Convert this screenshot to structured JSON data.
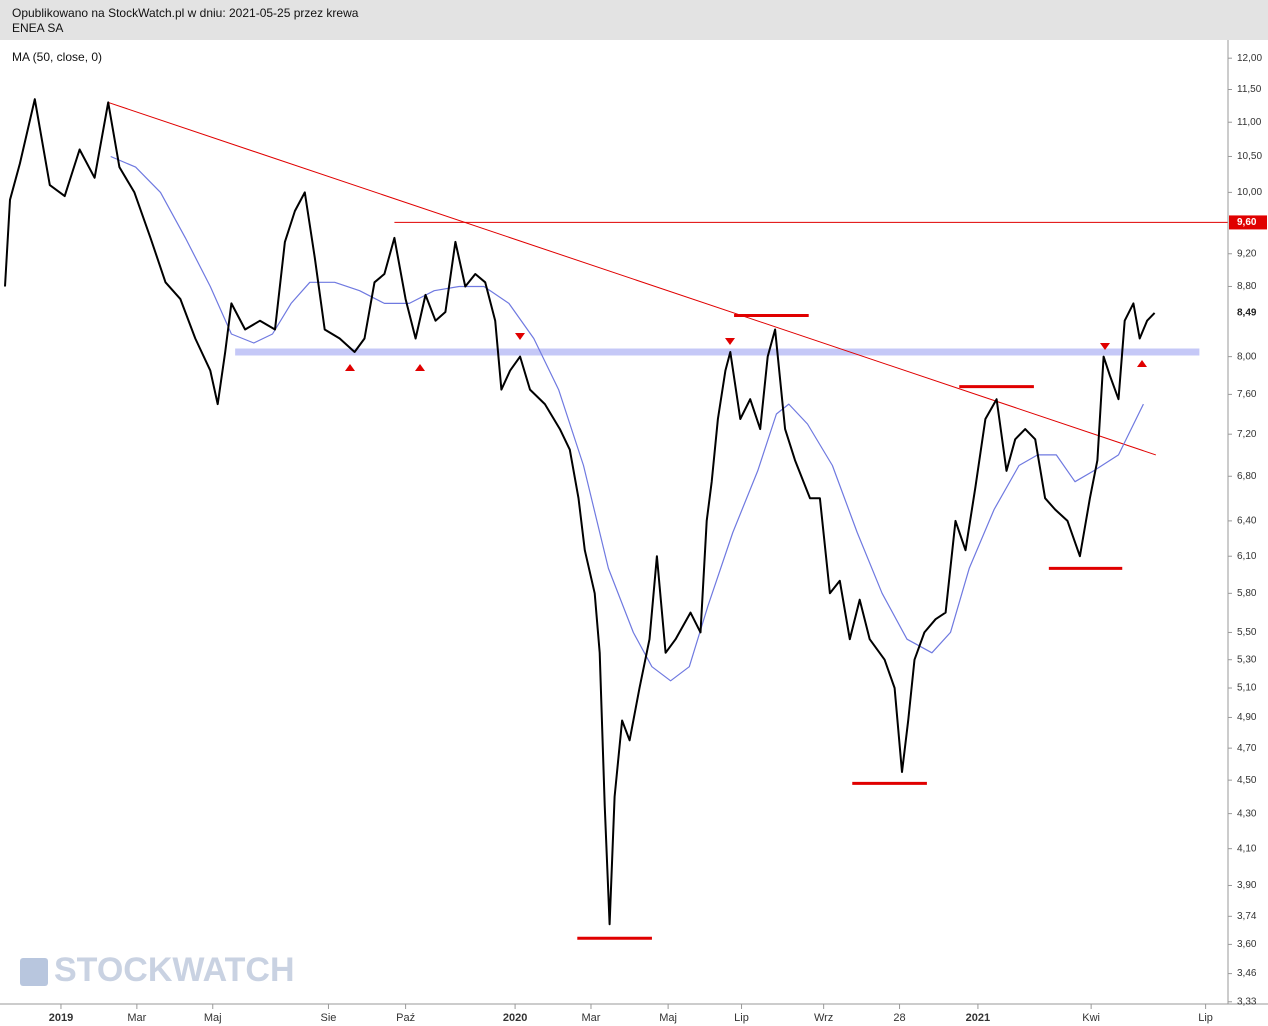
{
  "header": {
    "published": "Opublikowano na StockWatch.pl w dniu: 2021-05-25 przez krewa",
    "symbol": "ENEA SA"
  },
  "watermark": "STOCKWATCH",
  "chart_data": {
    "type": "line",
    "log_scale": true,
    "series": [
      {
        "name": "ENEA SA",
        "color": "#000000",
        "x": [
          -45,
          -41,
          -33,
          -21,
          -9,
          3,
          15,
          27,
          38,
          47,
          59,
          72,
          84,
          96,
          108,
          120,
          126,
          132,
          137,
          148,
          160,
          172,
          180,
          188,
          196,
          204,
          212,
          224,
          236,
          244,
          252,
          260,
          268,
          277,
          285,
          293,
          301,
          309,
          317,
          325,
          333,
          341,
          349,
          354,
          361,
          369,
          377,
          389,
          401,
          409,
          416,
          421,
          429,
          433,
          437,
          441,
          445,
          451,
          457,
          465,
          473,
          479,
          486,
          494,
          506,
          514,
          519,
          523,
          528,
          534,
          538,
          546,
          554,
          562,
          568,
          574,
          582,
          590,
          602,
          610,
          618,
          626,
          634,
          642,
          650,
          662,
          670,
          676,
          681,
          686,
          694,
          703,
          711,
          719,
          727,
          735,
          743,
          752,
          760,
          767,
          775,
          783,
          791,
          799,
          809,
          819,
          827,
          833,
          838,
          843,
          850,
          855,
          862,
          867,
          873,
          879
        ],
        "values": [
          8.8,
          9.9,
          10.4,
          11.35,
          10.1,
          9.95,
          10.6,
          10.2,
          11.3,
          10.35,
          10.0,
          9.4,
          8.85,
          8.65,
          8.2,
          7.85,
          7.5,
          8.05,
          8.6,
          8.3,
          8.4,
          8.3,
          9.35,
          9.75,
          10.0,
          9.15,
          8.3,
          8.2,
          8.05,
          8.2,
          8.85,
          8.95,
          9.4,
          8.65,
          8.2,
          8.7,
          8.4,
          8.5,
          9.35,
          8.8,
          8.95,
          8.85,
          8.4,
          7.65,
          7.85,
          8.0,
          7.65,
          7.5,
          7.25,
          7.05,
          6.6,
          6.15,
          5.8,
          5.35,
          4.35,
          3.7,
          4.4,
          4.88,
          4.75,
          5.1,
          5.45,
          6.1,
          5.35,
          5.45,
          5.65,
          5.5,
          6.4,
          6.75,
          7.35,
          7.85,
          8.05,
          7.35,
          7.55,
          7.25,
          8.0,
          8.3,
          7.25,
          6.95,
          6.6,
          6.6,
          5.8,
          5.9,
          5.45,
          5.75,
          5.45,
          5.3,
          5.1,
          4.55,
          4.88,
          5.3,
          5.5,
          5.6,
          5.65,
          6.4,
          6.15,
          6.7,
          7.35,
          7.55,
          6.85,
          7.15,
          7.25,
          7.15,
          6.6,
          6.5,
          6.4,
          6.1,
          6.6,
          6.95,
          8.0,
          7.8,
          7.55,
          8.4,
          8.6,
          8.2,
          8.4,
          8.49
        ]
      },
      {
        "name": "MA (50, close, 0)",
        "color": "#6f79e0",
        "x": [
          40,
          60,
          80,
          100,
          120,
          137,
          155,
          170,
          185,
          200,
          220,
          240,
          260,
          280,
          300,
          320,
          340,
          360,
          380,
          400,
          420,
          440,
          460,
          475,
          490,
          505,
          520,
          540,
          560,
          575,
          585,
          600,
          620,
          640,
          660,
          680,
          700,
          715,
          730,
          750,
          770,
          785,
          800,
          815,
          830,
          850,
          870
        ],
        "values": [
          10.5,
          10.35,
          10.0,
          9.4,
          8.8,
          8.25,
          8.15,
          8.25,
          8.6,
          8.85,
          8.85,
          8.75,
          8.6,
          8.6,
          8.75,
          8.8,
          8.8,
          8.6,
          8.2,
          7.65,
          6.9,
          6.0,
          5.5,
          5.25,
          5.15,
          5.25,
          5.7,
          6.3,
          6.85,
          7.4,
          7.5,
          7.3,
          6.9,
          6.3,
          5.8,
          5.45,
          5.35,
          5.5,
          6.0,
          6.5,
          6.9,
          7.0,
          7.0,
          6.75,
          6.85,
          7.0,
          7.5
        ]
      }
    ],
    "trendlines": [
      {
        "x": [
          38,
          880
        ],
        "y": [
          11.3,
          7.0
        ],
        "color": "#e00000"
      },
      {
        "x": [
          268,
          938
        ],
        "y": [
          9.6,
          9.6
        ],
        "color": "#e00000"
      }
    ],
    "band": {
      "x": [
        140,
        915
      ],
      "y": [
        8.05,
        8.05
      ],
      "color": "#c5c8f7"
    },
    "levels": [
      {
        "x": [
          415,
          475
        ],
        "y": [
          3.63,
          3.63
        ]
      },
      {
        "x": [
          636,
          696
        ],
        "y": [
          4.48,
          4.48
        ]
      },
      {
        "x": [
          794,
          853
        ],
        "y": [
          6.0,
          6.0
        ]
      },
      {
        "x": [
          722,
          782
        ],
        "y": [
          7.68,
          7.68
        ]
      },
      {
        "x": [
          541,
          601
        ],
        "y": [
          8.46,
          8.46
        ]
      }
    ],
    "level_color": "#e00000",
    "xlim": [
      -49,
      938
    ],
    "ylim": [
      3.32,
      12.3
    ],
    "xticks": [
      {
        "value": 0,
        "label": "2019"
      },
      {
        "value": 61,
        "label": "Mar"
      },
      {
        "value": 122,
        "label": "Maj"
      },
      {
        "value": 215,
        "label": "Sie"
      },
      {
        "value": 277,
        "label": "Paź"
      },
      {
        "value": 365,
        "label": "2020"
      },
      {
        "value": 426,
        "label": "Mar"
      },
      {
        "value": 488,
        "label": "Maj"
      },
      {
        "value": 547,
        "label": "Lip"
      },
      {
        "value": 613,
        "label": "Wrz"
      },
      {
        "value": 674,
        "label": "28"
      },
      {
        "value": 737,
        "label": "2021"
      },
      {
        "value": 828,
        "label": "Kwi"
      },
      {
        "value": 920,
        "label": "Lip"
      }
    ],
    "yticks": [
      {
        "value": 12,
        "label": "12,00"
      },
      {
        "value": 11.5,
        "label": "11,50"
      },
      {
        "value": 11,
        "label": "11,00"
      },
      {
        "value": 10.5,
        "label": "10,50"
      },
      {
        "value": 10,
        "label": "10,00"
      },
      {
        "value": 9.2,
        "label": "9,20"
      },
      {
        "value": 8.8,
        "label": "8,80"
      },
      {
        "value": 8,
        "label": "8,00"
      },
      {
        "value": 7.6,
        "label": "7,60"
      },
      {
        "value": 7.2,
        "label": "7,20"
      },
      {
        "value": 6.8,
        "label": "6,80"
      },
      {
        "value": 6.4,
        "label": "6,40"
      },
      {
        "value": 6.1,
        "label": "6,10"
      },
      {
        "value": 5.8,
        "label": "5,80"
      },
      {
        "value": 5.5,
        "label": "5,50"
      },
      {
        "value": 5.3,
        "label": "5,30"
      },
      {
        "value": 5.1,
        "label": "5,10"
      },
      {
        "value": 4.9,
        "label": "4,90"
      },
      {
        "value": 4.7,
        "label": "4,70"
      },
      {
        "value": 4.5,
        "label": "4,50"
      },
      {
        "value": 4.3,
        "label": "4,30"
      },
      {
        "value": 4.1,
        "label": "4,10"
      },
      {
        "value": 3.9,
        "label": "3,90"
      },
      {
        "value": 3.74,
        "label": "3,74"
      },
      {
        "value": 3.6,
        "label": "3,60"
      },
      {
        "value": 3.46,
        "label": "3,46"
      },
      {
        "value": 3.33,
        "label": "3,33"
      }
    ],
    "price_labels": [
      {
        "value": 9.6,
        "label": "9,60",
        "color": "#e00000"
      },
      {
        "value": 8.49,
        "label": "8,49",
        "color": "#ffffff"
      }
    ]
  }
}
